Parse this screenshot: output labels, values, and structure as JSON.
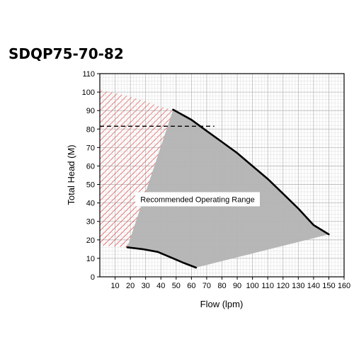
{
  "chart_data": {
    "type": "line",
    "title": "SDQP75-70-82",
    "xlabel": "Flow (lpm)",
    "ylabel": "Total Head (M)",
    "xlim": [
      0,
      160
    ],
    "ylim": [
      0,
      110
    ],
    "x_ticks": [
      10,
      20,
      30,
      40,
      50,
      60,
      70,
      80,
      90,
      100,
      110,
      120,
      130,
      140,
      150,
      160
    ],
    "y_ticks": [
      0,
      10,
      20,
      30,
      40,
      50,
      60,
      70,
      80,
      90,
      100,
      110
    ],
    "grid": true,
    "minor_grid": true,
    "series": [
      {
        "role": "max-curve",
        "x": [
          48,
          60,
          70,
          80,
          90,
          100,
          110,
          120,
          130,
          140,
          150
        ],
        "y": [
          90.5,
          85,
          79,
          73,
          67,
          60,
          53,
          45,
          37,
          28,
          23
        ]
      },
      {
        "role": "min-curve",
        "x": [
          18,
          28,
          38,
          48,
          55,
          63
        ],
        "y": [
          16,
          15,
          13.5,
          10,
          7.5,
          5
        ]
      }
    ],
    "regions": [
      {
        "role": "recommended-range",
        "color": "#b3b3b3",
        "x": [
          18,
          48,
          60,
          70,
          80,
          90,
          100,
          110,
          120,
          130,
          140,
          150,
          63,
          55,
          48,
          38,
          28
        ],
        "y": [
          16,
          90.5,
          85,
          79,
          73,
          67,
          60,
          53,
          45,
          37,
          28,
          23,
          5,
          7.5,
          10,
          13.5,
          15
        ]
      },
      {
        "role": "hatched-zone",
        "color": "#e03030",
        "x": [
          0,
          10,
          20,
          30,
          40,
          48,
          18,
          0
        ],
        "y": [
          101,
          99.5,
          97.5,
          95,
          92,
          90.5,
          16,
          17
        ]
      }
    ],
    "reference_line": {
      "y": 81.5,
      "x_range": [
        0,
        75
      ],
      "style": "dashed"
    },
    "annotation": {
      "text": "Recommended Operating Range",
      "x": 64,
      "y": 42
    }
  }
}
